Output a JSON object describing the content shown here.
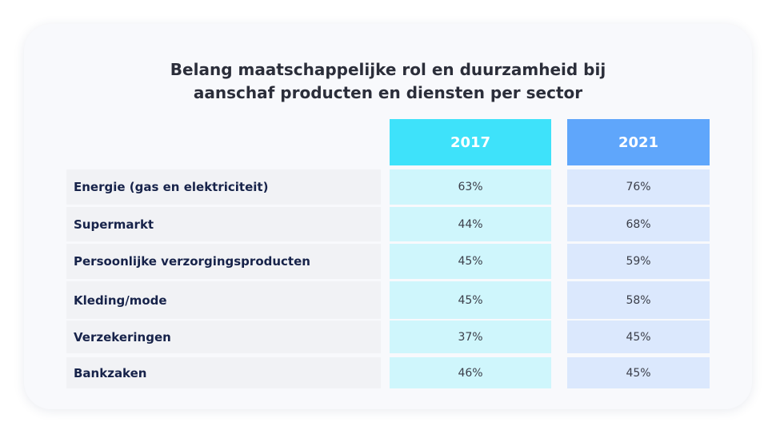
{
  "chart_data": {
    "type": "table",
    "title_lines": [
      "Belang maatschappelijke rol en duurzamheid bij",
      "aanschaf producten en diensten per sector"
    ],
    "columns": [
      {
        "label": "2017",
        "header_color": "#3ee2fa",
        "cell_color": "#cff6fc"
      },
      {
        "label": "2021",
        "header_color": "#5fa6fb",
        "cell_color": "#dbe8fd"
      }
    ],
    "rows": [
      {
        "label": "Energie (gas en  elektriciteit)",
        "values": [
          "63%",
          "76%"
        ]
      },
      {
        "label": "Supermarkt",
        "values": [
          "44%",
          "68%"
        ]
      },
      {
        "label": "Persoonlijke  verzorgingsproducten",
        "values": [
          "45%",
          "59%"
        ]
      },
      {
        "label": "Kleding/mode",
        "values": [
          "45%",
          "58%"
        ]
      },
      {
        "label": "Verzekeringen",
        "values": [
          "37%",
          "45%"
        ]
      },
      {
        "label": "Bankzaken",
        "values": [
          "46%",
          "45%"
        ]
      }
    ]
  }
}
